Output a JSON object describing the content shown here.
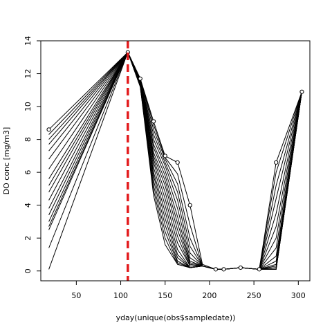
{
  "chart_data": {
    "type": "line",
    "title": "",
    "xlabel": "yday(unique(obs$sampledate))",
    "ylabel": "DO conc [mg/m3]",
    "xlim": [
      10,
      313
    ],
    "ylim": [
      -0.6,
      14.0
    ],
    "xticks": [
      50,
      100,
      150,
      200,
      250,
      300
    ],
    "yticks": [
      0,
      2,
      4,
      6,
      8,
      10,
      12,
      14
    ],
    "grid": false,
    "vline": {
      "x": 108,
      "color": "#e31a1c",
      "style": "dashed"
    },
    "observations": {
      "x": [
        19,
        108,
        122,
        137,
        150,
        164,
        178,
        207,
        216,
        235,
        256,
        275,
        304
      ],
      "y": [
        8.6,
        13.3,
        11.7,
        9.1,
        7.0,
        6.6,
        4.0,
        0.1,
        0.1,
        0.2,
        0.1,
        6.6,
        10.9
      ]
    },
    "series": [
      {
        "x": [
          19,
          108,
          122,
          137,
          150,
          164,
          178,
          192,
          207,
          216,
          235,
          256,
          275,
          304
        ],
        "y": [
          8.6,
          13.3,
          11.7,
          9.1,
          7.0,
          6.6,
          4.0,
          0.4,
          0.1,
          0.1,
          0.2,
          0.1,
          6.6,
          10.9
        ]
      },
      {
        "x": [
          19,
          108,
          122,
          137,
          150,
          164,
          178,
          192,
          207,
          216,
          235,
          256,
          275,
          304
        ],
        "y": [
          8.3,
          13.3,
          11.7,
          8.9,
          6.9,
          5.9,
          2.8,
          0.3,
          0.1,
          0.1,
          0.2,
          0.1,
          6.0,
          10.9
        ]
      },
      {
        "x": [
          19,
          108,
          122,
          137,
          150,
          164,
          178,
          192,
          207,
          216,
          235,
          256,
          275,
          304
        ],
        "y": [
          8.0,
          13.3,
          11.7,
          8.6,
          6.8,
          5.3,
          2.0,
          0.3,
          0.1,
          0.1,
          0.2,
          0.1,
          5.2,
          10.9
        ]
      },
      {
        "x": [
          19,
          108,
          122,
          137,
          150,
          164,
          178,
          192,
          207,
          216,
          235,
          256,
          275,
          304
        ],
        "y": [
          7.7,
          13.3,
          11.6,
          8.3,
          6.6,
          4.8,
          1.5,
          0.3,
          0.1,
          0.1,
          0.2,
          0.1,
          4.4,
          10.9
        ]
      },
      {
        "x": [
          19,
          108,
          122,
          137,
          150,
          164,
          178,
          192,
          207,
          216,
          235,
          256,
          275,
          304
        ],
        "y": [
          7.3,
          13.3,
          11.6,
          8.0,
          6.4,
          4.3,
          1.1,
          0.3,
          0.1,
          0.1,
          0.2,
          0.1,
          3.5,
          10.9
        ]
      },
      {
        "x": [
          19,
          108,
          122,
          137,
          150,
          164,
          178,
          192,
          207,
          216,
          235,
          256,
          275,
          304
        ],
        "y": [
          6.8,
          13.3,
          11.6,
          7.7,
          6.1,
          3.8,
          0.8,
          0.3,
          0.1,
          0.1,
          0.2,
          0.1,
          2.7,
          10.9
        ]
      },
      {
        "x": [
          19,
          108,
          122,
          137,
          150,
          164,
          178,
          192,
          207,
          216,
          235,
          256,
          275,
          304
        ],
        "y": [
          6.2,
          13.3,
          11.5,
          7.5,
          5.8,
          3.3,
          0.6,
          0.3,
          0.1,
          0.1,
          0.2,
          0.1,
          2.0,
          10.9
        ]
      },
      {
        "x": [
          19,
          108,
          122,
          137,
          150,
          164,
          178,
          192,
          207,
          216,
          235,
          256,
          275,
          304
        ],
        "y": [
          5.6,
          13.3,
          11.5,
          7.2,
          5.5,
          2.9,
          0.5,
          0.3,
          0.1,
          0.1,
          0.2,
          0.1,
          1.4,
          10.9
        ]
      },
      {
        "x": [
          19,
          108,
          122,
          137,
          150,
          164,
          178,
          192,
          207,
          216,
          235,
          256,
          275,
          304
        ],
        "y": [
          5.2,
          13.3,
          11.5,
          7.0,
          5.2,
          2.5,
          0.4,
          0.3,
          0.1,
          0.1,
          0.2,
          0.1,
          0.9,
          10.9
        ]
      },
      {
        "x": [
          19,
          108,
          122,
          137,
          150,
          164,
          178,
          192,
          207,
          216,
          235,
          256,
          275,
          304
        ],
        "y": [
          4.8,
          13.3,
          11.4,
          6.8,
          4.8,
          2.1,
          0.3,
          0.3,
          0.1,
          0.1,
          0.2,
          0.1,
          0.6,
          10.9
        ]
      },
      {
        "x": [
          19,
          108,
          122,
          137,
          150,
          164,
          178,
          192,
          207,
          216,
          235,
          256,
          275,
          304
        ],
        "y": [
          4.3,
          13.3,
          11.4,
          6.6,
          4.4,
          1.7,
          0.3,
          0.3,
          0.1,
          0.1,
          0.2,
          0.1,
          0.4,
          10.9
        ]
      },
      {
        "x": [
          19,
          108,
          122,
          137,
          150,
          164,
          178,
          192,
          207,
          216,
          235,
          256,
          275,
          304
        ],
        "y": [
          3.8,
          13.3,
          11.4,
          6.3,
          4.0,
          1.3,
          0.2,
          0.3,
          0.1,
          0.1,
          0.2,
          0.1,
          0.3,
          10.9
        ]
      },
      {
        "x": [
          19,
          108,
          122,
          137,
          150,
          164,
          178,
          192,
          207,
          216,
          235,
          256,
          275,
          304
        ],
        "y": [
          3.4,
          13.3,
          11.3,
          6.0,
          3.6,
          1.0,
          0.2,
          0.3,
          0.1,
          0.1,
          0.2,
          0.1,
          0.2,
          10.9
        ]
      },
      {
        "x": [
          19,
          108,
          122,
          137,
          150,
          164,
          178,
          192,
          207,
          216,
          235,
          256,
          275,
          304
        ],
        "y": [
          3.0,
          13.3,
          11.3,
          5.8,
          3.2,
          0.8,
          0.2,
          0.3,
          0.1,
          0.1,
          0.2,
          0.1,
          0.2,
          10.9
        ]
      },
      {
        "x": [
          19,
          108,
          122,
          137,
          150,
          164,
          178,
          192,
          207,
          216,
          235,
          256,
          275,
          304
        ],
        "y": [
          2.7,
          13.3,
          11.3,
          5.5,
          2.8,
          0.6,
          0.2,
          0.3,
          0.1,
          0.1,
          0.2,
          0.1,
          0.1,
          10.9
        ]
      },
      {
        "x": [
          19,
          108,
          122,
          137,
          150,
          164,
          178,
          192,
          207,
          216,
          235,
          256,
          275,
          304
        ],
        "y": [
          2.5,
          13.3,
          11.2,
          5.2,
          2.4,
          0.5,
          0.2,
          0.3,
          0.1,
          0.1,
          0.2,
          0.1,
          0.1,
          10.9
        ]
      },
      {
        "x": [
          19,
          108,
          122,
          137,
          150,
          164,
          178,
          192,
          207,
          216,
          235,
          256,
          275,
          304
        ],
        "y": [
          1.4,
          13.3,
          11.2,
          4.9,
          2.0,
          0.4,
          0.2,
          0.3,
          0.1,
          0.1,
          0.2,
          0.1,
          0.1,
          10.9
        ]
      },
      {
        "x": [
          19,
          108,
          122,
          137,
          150,
          164,
          178,
          192,
          207,
          216,
          235,
          256,
          275,
          304
        ],
        "y": [
          0.1,
          13.3,
          11.2,
          4.6,
          1.6,
          0.4,
          0.2,
          0.3,
          0.1,
          0.1,
          0.2,
          0.1,
          0.1,
          10.9
        ]
      }
    ]
  }
}
